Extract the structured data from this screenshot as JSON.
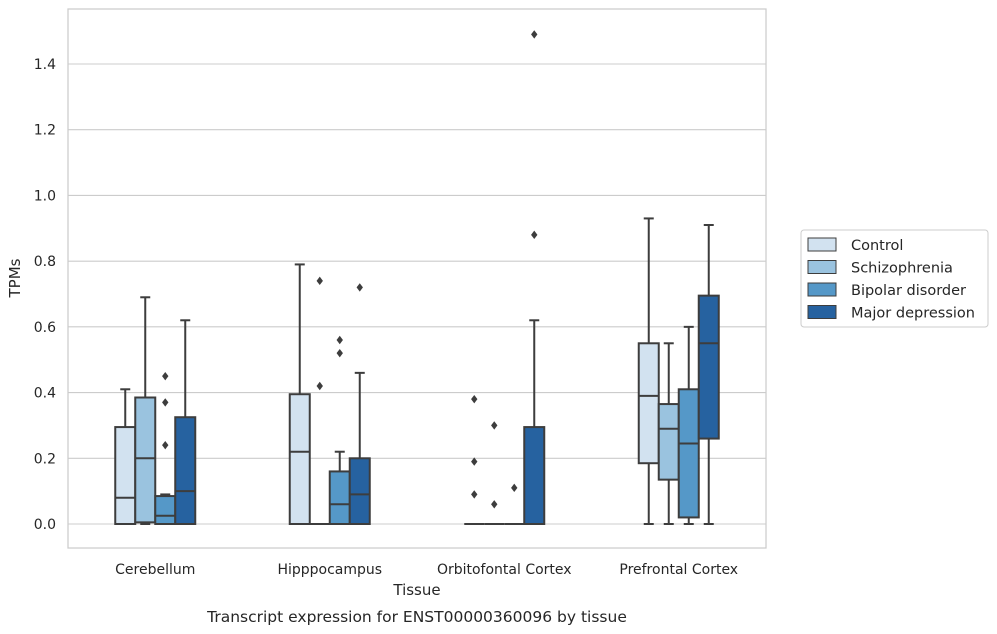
{
  "chart_data": {
    "type": "boxplot",
    "xlabel": "Tissue",
    "ylabel": "TPMs",
    "caption": "Transcript expression for ENST00000360096 by tissue",
    "categories": [
      "Cerebellum",
      "Hipppocampus",
      "Orbitofontal Cortex",
      "Prefrontal Cortex"
    ],
    "ylim": [
      -0.07,
      1.56
    ],
    "yticks": [
      0.0,
      0.2,
      0.4,
      0.6,
      0.8,
      1.0,
      1.2,
      1.4
    ],
    "ytick_labels": [
      "0.0",
      "0.2",
      "0.4",
      "0.6",
      "0.8",
      "1.0",
      "1.2",
      "1.4"
    ],
    "grid": "horizontal",
    "legend_position": "outside-right",
    "series": [
      {
        "name": "Control",
        "color": "#d2e2f0",
        "boxes": [
          {
            "min": 0.0,
            "q1": 0.0,
            "median": 0.08,
            "q3": 0.295,
            "max": 0.41,
            "outliers": []
          },
          {
            "min": 0.0,
            "q1": 0.0,
            "median": 0.22,
            "q3": 0.395,
            "max": 0.79,
            "outliers": []
          },
          {
            "min": 0.0,
            "q1": 0.0,
            "median": 0.0,
            "q3": 0.0,
            "max": 0.0,
            "outliers": [
              0.38,
              0.19,
              0.09
            ]
          },
          {
            "min": 0.0,
            "q1": 0.185,
            "median": 0.39,
            "q3": 0.55,
            "max": 0.93,
            "outliers": []
          }
        ]
      },
      {
        "name": "Schizophrenia",
        "color": "#9ac3df",
        "boxes": [
          {
            "min": 0.0,
            "q1": 0.005,
            "median": 0.2,
            "q3": 0.385,
            "max": 0.69,
            "outliers": []
          },
          {
            "min": 0.0,
            "q1": 0.0,
            "median": 0.0,
            "q3": 0.0,
            "max": 0.0,
            "outliers": [
              0.74,
              0.42
            ]
          },
          {
            "min": 0.0,
            "q1": 0.0,
            "median": 0.0,
            "q3": 0.0,
            "max": 0.0,
            "outliers": [
              0.3,
              0.06
            ]
          },
          {
            "min": 0.0,
            "q1": 0.135,
            "median": 0.29,
            "q3": 0.365,
            "max": 0.55,
            "outliers": []
          }
        ]
      },
      {
        "name": "Bipolar disorder",
        "color": "#5598c8",
        "boxes": [
          {
            "min": 0.0,
            "q1": 0.0,
            "median": 0.025,
            "q3": 0.085,
            "max": 0.09,
            "outliers": [
              0.45,
              0.37,
              0.24
            ]
          },
          {
            "min": 0.0,
            "q1": 0.0,
            "median": 0.06,
            "q3": 0.16,
            "max": 0.22,
            "outliers": [
              0.56,
              0.52
            ]
          },
          {
            "min": 0.0,
            "q1": 0.0,
            "median": 0.0,
            "q3": 0.0,
            "max": 0.0,
            "outliers": [
              0.11
            ]
          },
          {
            "min": 0.0,
            "q1": 0.02,
            "median": 0.245,
            "q3": 0.41,
            "max": 0.6,
            "outliers": []
          }
        ]
      },
      {
        "name": "Major depression",
        "color": "#2662a0",
        "boxes": [
          {
            "min": 0.0,
            "q1": 0.0,
            "median": 0.1,
            "q3": 0.325,
            "max": 0.62,
            "outliers": []
          },
          {
            "min": 0.0,
            "q1": 0.0,
            "median": 0.09,
            "q3": 0.2,
            "max": 0.46,
            "outliers": [
              0.72
            ]
          },
          {
            "min": 0.0,
            "q1": 0.0,
            "median": 0.0,
            "q3": 0.295,
            "max": 0.62,
            "outliers": [
              1.49,
              0.88
            ]
          },
          {
            "min": 0.0,
            "q1": 0.26,
            "median": 0.55,
            "q3": 0.695,
            "max": 0.91,
            "outliers": []
          }
        ]
      }
    ]
  }
}
